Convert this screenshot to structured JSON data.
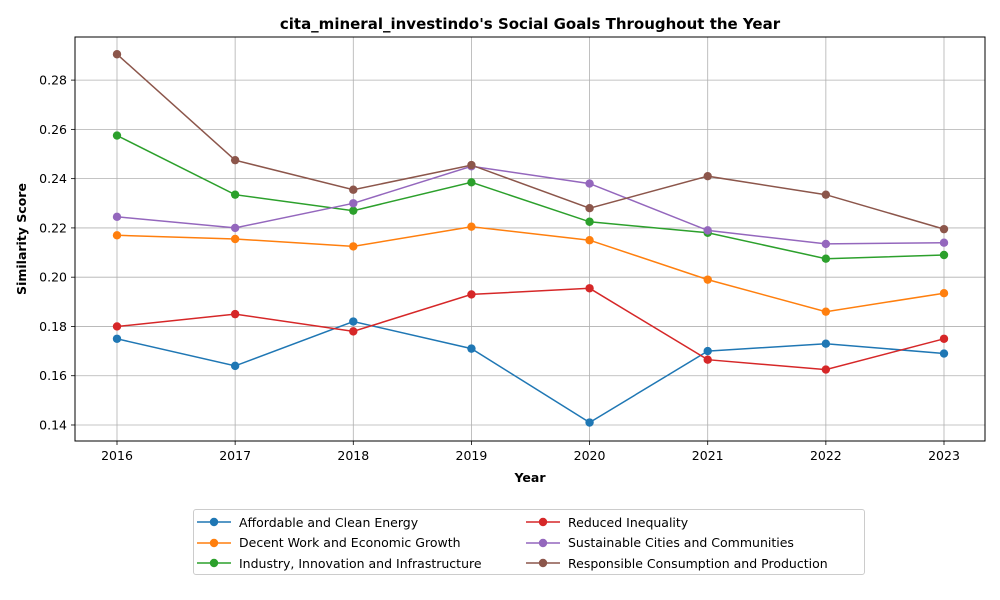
{
  "chart_data": {
    "type": "line",
    "title": "cita_mineral_investindo's Social Goals Throughout the Year",
    "xlabel": "Year",
    "ylabel": "Similarity Score",
    "x": [
      "2016",
      "2017",
      "2018",
      "2019",
      "2020",
      "2021",
      "2022",
      "2023"
    ],
    "yticks": [
      "0.14",
      "0.16",
      "0.18",
      "0.20",
      "0.22",
      "0.24",
      "0.26",
      "0.28"
    ],
    "ylim": [
      0.1335,
      0.2975
    ],
    "grid": true,
    "legend_position": "bottom-center",
    "series": [
      {
        "name": "Affordable and Clean Energy",
        "color": "#1f77b4",
        "values": [
          0.175,
          0.164,
          0.182,
          0.171,
          0.141,
          0.17,
          0.173,
          0.169
        ]
      },
      {
        "name": "Decent Work and Economic Growth",
        "color": "#ff7f0e",
        "values": [
          0.217,
          0.2155,
          0.2125,
          0.2205,
          0.215,
          0.199,
          0.186,
          0.1935
        ]
      },
      {
        "name": "Industry, Innovation and Infrastructure",
        "color": "#2ca02c",
        "values": [
          0.2575,
          0.2335,
          0.227,
          0.2385,
          0.2225,
          0.218,
          0.2075,
          0.209
        ]
      },
      {
        "name": "Reduced Inequality",
        "color": "#d62728",
        "values": [
          0.18,
          0.185,
          0.178,
          0.193,
          0.1955,
          0.1665,
          0.1625,
          0.175
        ]
      },
      {
        "name": "Sustainable Cities and Communities",
        "color": "#9467bd",
        "values": [
          0.2245,
          0.22,
          0.23,
          0.245,
          0.238,
          0.219,
          0.2135,
          0.214
        ]
      },
      {
        "name": "Responsible Consumption and Production",
        "color": "#8c564b",
        "values": [
          0.2905,
          0.2475,
          0.2355,
          0.2455,
          0.228,
          0.241,
          0.2335,
          0.2195
        ]
      }
    ]
  }
}
